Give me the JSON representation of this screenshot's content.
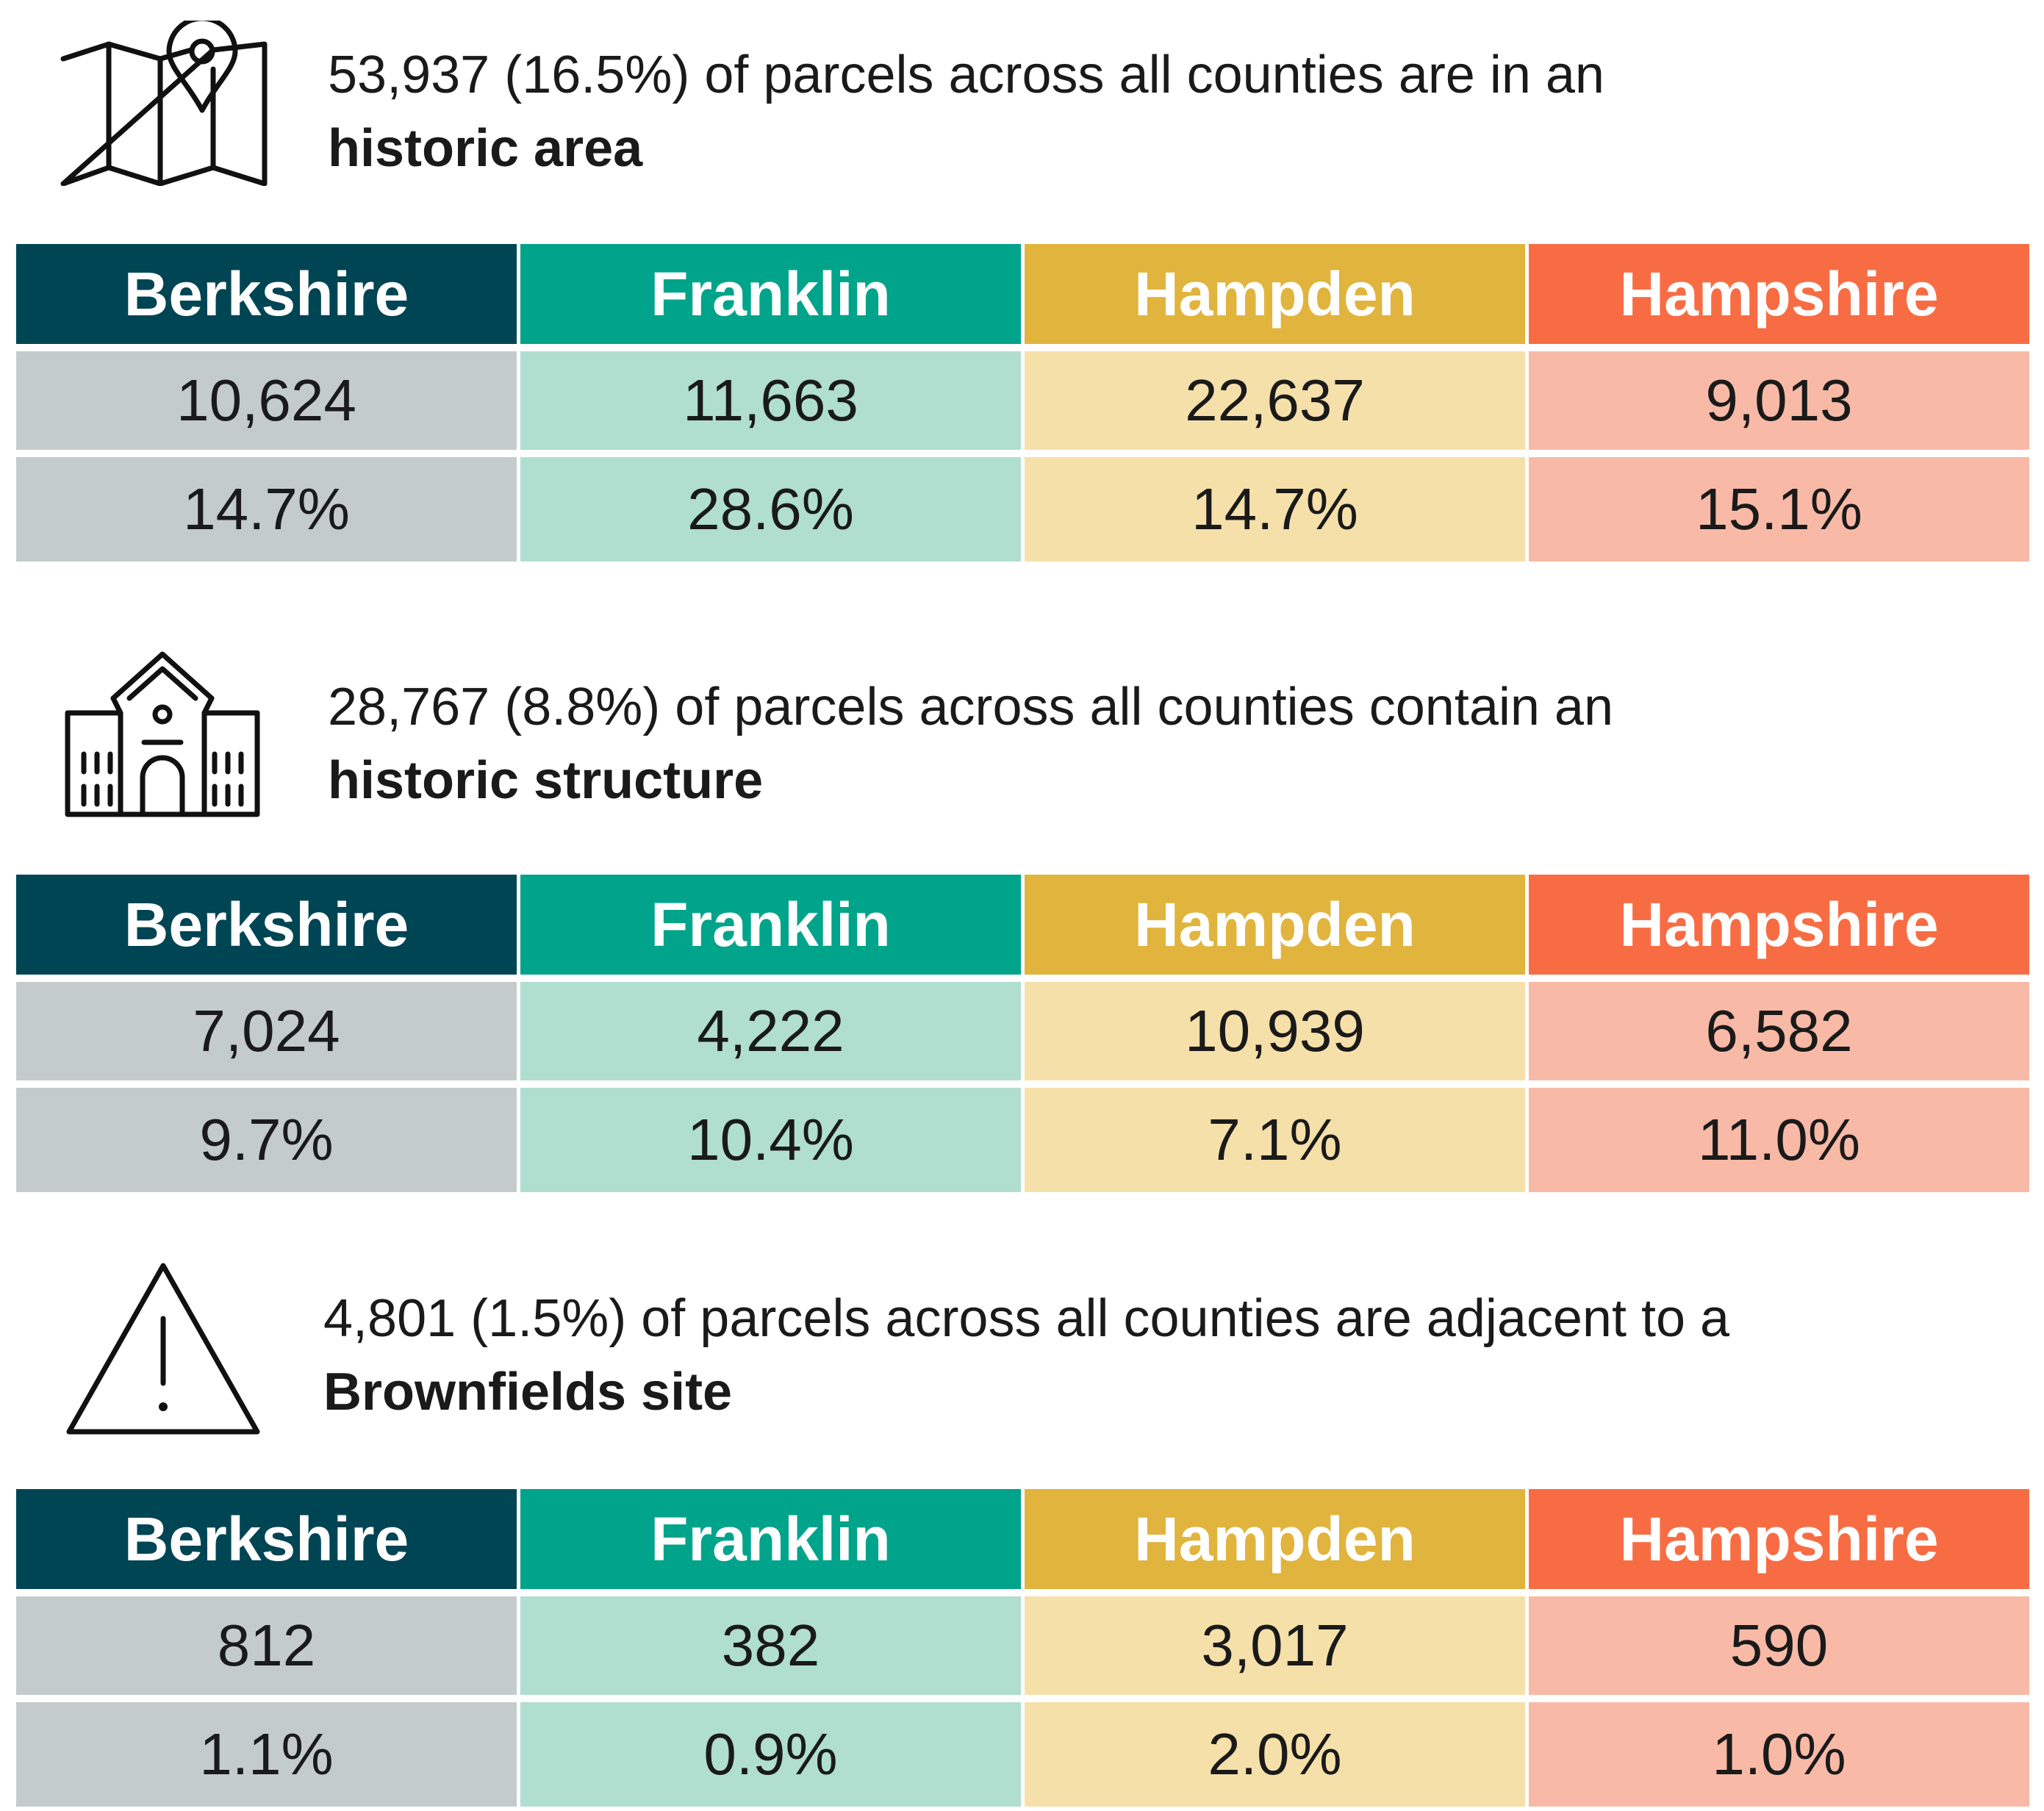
{
  "colors": {
    "berkshire": {
      "header": "#004554",
      "cell": "#C3CCCB"
    },
    "franklin": {
      "header": "#00A48A",
      "cell": "#B0DECF"
    },
    "hampden": {
      "header": "#E1B43D",
      "cell": "#F6E0AA"
    },
    "hampshire": {
      "header": "#F86C43",
      "cell": "#F8BAA7"
    }
  },
  "sections": [
    {
      "icon": "map-pin-icon",
      "headline": "53,937 (16.5%) of parcels across all counties are in an",
      "headline_bold": "historic area",
      "table": {
        "headers": [
          "Berkshire",
          "Franklin",
          "Hampden",
          "Hampshire"
        ],
        "counts": [
          "10,624",
          "11,663",
          "22,637",
          "9,013"
        ],
        "percents": [
          "14.7%",
          "28.6%",
          "14.7%",
          "15.1%"
        ]
      }
    },
    {
      "icon": "historic-building-icon",
      "headline": "28,767 (8.8%) of parcels across all counties contain an",
      "headline_bold": "historic structure",
      "table": {
        "headers": [
          "Berkshire",
          "Franklin",
          "Hampden",
          "Hampshire"
        ],
        "counts": [
          "7,024",
          "4,222",
          "10,939",
          "6,582"
        ],
        "percents": [
          "9.7%",
          "10.4%",
          "7.1%",
          "11.0%"
        ]
      }
    },
    {
      "icon": "warning-triangle-icon",
      "headline": "4,801 (1.5%) of parcels across all counties are adjacent to a",
      "headline_bold": "Brownfields site",
      "table": {
        "headers": [
          "Berkshire",
          "Franklin",
          "Hampden",
          "Hampshire"
        ],
        "counts": [
          "812",
          "382",
          "3,017",
          "590"
        ],
        "percents": [
          "1.1%",
          "0.9%",
          "2.0%",
          "1.0%"
        ]
      }
    }
  ]
}
